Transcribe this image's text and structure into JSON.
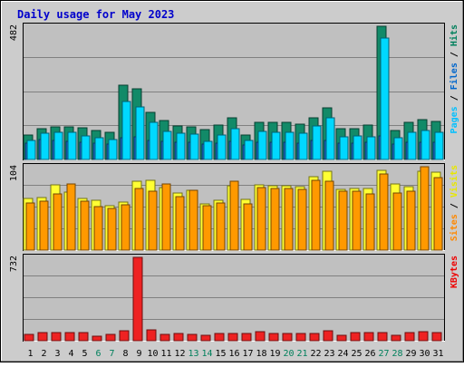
{
  "chart_data": {
    "title": "Daily usage for May 2023",
    "categories": [
      "1",
      "2",
      "3",
      "4",
      "5",
      "6",
      "7",
      "8",
      "9",
      "10",
      "11",
      "12",
      "13",
      "14",
      "15",
      "16",
      "17",
      "18",
      "19",
      "20",
      "21",
      "22",
      "23",
      "24",
      "25",
      "26",
      "27",
      "28",
      "29",
      "30",
      "31"
    ],
    "weekend_days": [
      "6",
      "7",
      "13",
      "14",
      "20",
      "21",
      "27",
      "28"
    ],
    "panels": [
      {
        "type": "bar",
        "max_label": "482",
        "ylim": [
          0,
          482
        ],
        "grid": true,
        "legend": [
          {
            "label": "Pages",
            "color": "#00c0ff"
          },
          {
            "sep": " / ",
            "color": "#000000"
          },
          {
            "label": "Files",
            "color": "#0066cc"
          },
          {
            "sep": " / ",
            "color": "#000000"
          },
          {
            "label": "Hits",
            "color": "#00805c"
          }
        ],
        "series": [
          {
            "name": "Hits",
            "color": "#128a68",
            "values": [
              90,
              110,
              118,
              118,
              114,
              105,
              100,
              270,
              255,
              170,
              142,
              120,
              118,
              107,
              125,
              152,
              90,
              136,
              136,
              136,
              128,
              150,
              187,
              113,
              110,
              125,
              482,
              104,
              136,
              143,
              138
            ]
          },
          {
            "name": "Files",
            "color": "#1a6bd6",
            "values": [
              60,
              72,
              68,
              66,
              63,
              60,
              56,
              80,
              82,
              70,
              66,
              62,
              62,
              56,
              60,
              64,
              54,
              62,
              62,
              62,
              60,
              68,
              70,
              60,
              58,
              62,
              85,
              56,
              62,
              62,
              62
            ]
          },
          {
            "name": "Pages",
            "color": "#00d8ff",
            "values": [
              70,
              95,
              100,
              98,
              84,
              80,
              71,
              210,
              190,
              135,
              102,
              95,
              93,
              65,
              87,
              112,
              70,
              101,
              99,
              98,
              95,
              120,
              152,
              82,
              86,
              83,
              438,
              80,
              97,
              105,
              100
            ]
          }
        ]
      },
      {
        "type": "bar",
        "max_label": "104",
        "ylim": [
          0,
          104
        ],
        "grid": true,
        "legend": [
          {
            "label": "Sites",
            "color": "#ff8800"
          },
          {
            "sep": " / ",
            "color": "#000000"
          },
          {
            "label": "Visits",
            "color": "#e8e800"
          }
        ],
        "series": [
          {
            "name": "Visits",
            "color": "#ffff33",
            "values": [
              64,
              65,
              81,
              72,
              64,
              62,
              55,
              60,
              86,
              87,
              78,
              71,
              75,
              58,
              62,
              80,
              63,
              81,
              80,
              80,
              79,
              91,
              98,
              76,
              77,
              77,
              99,
              82,
              79,
              98,
              97
            ]
          },
          {
            "name": "Sites",
            "color": "#ff9900",
            "values": [
              59,
              61,
              70,
              82,
              61,
              54,
              52,
              56,
              77,
              73,
              83,
              67,
              75,
              55,
              59,
              86,
              58,
              78,
              77,
              77,
              76,
              87,
              86,
              73,
              74,
              70,
              95,
              71,
              73,
              104,
              90
            ]
          }
        ]
      },
      {
        "type": "bar",
        "max_label": "732",
        "ylim": [
          0,
          732
        ],
        "grid": true,
        "legend": [
          {
            "label": "KBytes",
            "color": "#ee0000"
          }
        ],
        "series": [
          {
            "name": "KBytes",
            "color": "#ee2222",
            "values": [
              53,
              74,
              70,
              71,
              74,
              40,
              58,
              84,
              732,
              99,
              52,
              61,
              59,
              50,
              66,
              63,
              63,
              79,
              61,
              60,
              62,
              63,
              89,
              49,
              72,
              72,
              68,
              48,
              71,
              77,
              73
            ]
          }
        ]
      }
    ]
  }
}
